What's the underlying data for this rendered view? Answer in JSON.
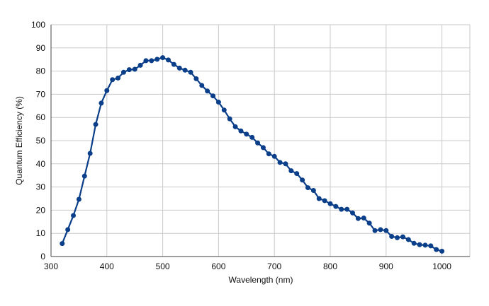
{
  "chart_data": {
    "type": "line",
    "title": "",
    "xlabel": "Wavelength (nm)",
    "ylabel": "Quantum Efficiency (%)",
    "xlim": [
      300,
      1050
    ],
    "ylim": [
      0,
      100
    ],
    "xticks": [
      300,
      400,
      500,
      600,
      700,
      800,
      900,
      1000
    ],
    "yticks": [
      0,
      10,
      20,
      30,
      40,
      50,
      60,
      70,
      80,
      90,
      100
    ],
    "xtick_labels": [
      "300",
      "400",
      "500",
      "600",
      "700",
      "800",
      "900",
      "1000"
    ],
    "ytick_labels": [
      "0",
      "10",
      "20",
      "30",
      "40",
      "50",
      "60",
      "70",
      "80",
      "90",
      "100"
    ],
    "grid": true,
    "legend": "none",
    "line_color": "#0b3f8a",
    "series": [
      {
        "x": [
          320,
          330,
          340,
          350,
          360,
          370,
          380,
          390,
          400,
          410,
          420,
          430,
          440,
          450,
          460,
          470,
          480,
          490,
          500,
          510,
          520,
          530,
          540,
          550,
          560,
          570,
          580,
          590,
          600,
          610,
          620,
          630,
          640,
          650,
          660,
          670,
          680,
          690,
          700,
          710,
          720,
          730,
          740,
          750,
          760,
          770,
          780,
          790,
          800,
          810,
          820,
          830,
          840,
          850,
          860,
          870,
          880,
          890,
          900,
          910,
          920,
          930,
          940,
          950,
          960,
          970,
          980,
          990,
          1000
        ],
        "y": [
          5.6,
          11.6,
          17.7,
          24.7,
          34.7,
          44.5,
          57.0,
          66.2,
          71.6,
          76.3,
          77.0,
          79.5,
          80.6,
          80.8,
          82.5,
          84.5,
          84.5,
          85.1,
          85.8,
          84.8,
          82.9,
          81.3,
          80.4,
          79.5,
          76.7,
          73.8,
          71.4,
          69.3,
          66.6,
          63.2,
          59.4,
          56.0,
          54.2,
          52.8,
          51.4,
          49.0,
          47.0,
          44.3,
          43.2,
          40.6,
          40.0,
          37.0,
          35.8,
          33.0,
          29.7,
          28.5,
          25.0,
          24.1,
          22.8,
          21.6,
          20.4,
          20.4,
          18.8,
          16.4,
          16.6,
          14.4,
          11.2,
          11.6,
          11.2,
          8.7,
          8.1,
          8.5,
          7.3,
          5.7,
          5.1,
          4.9,
          4.6,
          3.0,
          2.3
        ]
      }
    ]
  }
}
